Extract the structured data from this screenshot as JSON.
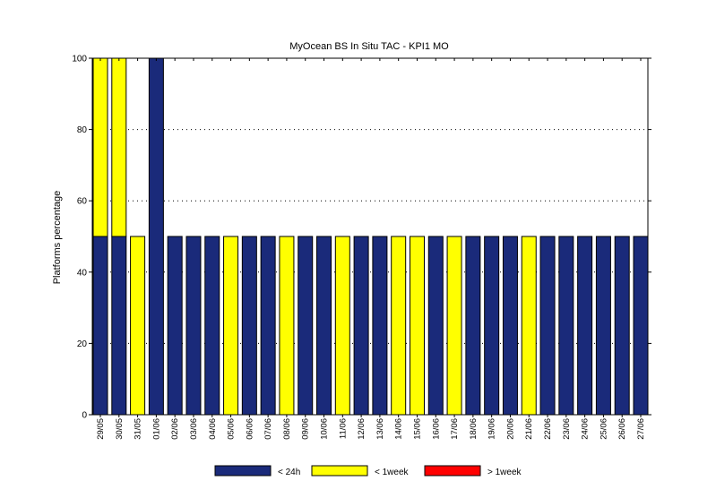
{
  "chart_data": {
    "type": "bar",
    "stacked": true,
    "title": "MyOcean  BS In Situ TAC - KPI1  MO",
    "ylabel": "Platforms percentage",
    "xlabel": "",
    "ylim": [
      0,
      100
    ],
    "yticks": [
      0,
      20,
      40,
      60,
      80,
      100
    ],
    "grid": "dotted horizontal",
    "legend_position": "bottom",
    "categories": [
      "29/05",
      "30/05",
      "31/05",
      "01/06",
      "02/06",
      "03/06",
      "04/06",
      "05/06",
      "06/06",
      "07/06",
      "08/06",
      "09/06",
      "10/06",
      "11/06",
      "12/06",
      "13/06",
      "14/06",
      "15/06",
      "16/06",
      "17/06",
      "18/06",
      "19/06",
      "20/06",
      "21/06",
      "22/06",
      "23/06",
      "24/06",
      "25/06",
      "26/06",
      "27/06"
    ],
    "series": [
      {
        "name": "< 24h",
        "color": "#1a2a7a",
        "values": [
          50,
          50,
          0,
          100,
          50,
          50,
          50,
          0,
          50,
          50,
          0,
          50,
          50,
          0,
          50,
          50,
          0,
          0,
          50,
          0,
          50,
          50,
          50,
          0,
          50,
          50,
          50,
          50,
          50,
          50
        ]
      },
      {
        "name": "< 1week",
        "color": "#ffff00",
        "values": [
          50,
          50,
          50,
          0,
          0,
          0,
          0,
          50,
          0,
          0,
          50,
          0,
          0,
          50,
          0,
          0,
          50,
          50,
          0,
          50,
          0,
          0,
          0,
          50,
          0,
          0,
          0,
          0,
          0,
          0
        ]
      },
      {
        "name": "> 1week",
        "color": "#ff0000",
        "values": [
          0,
          0,
          0,
          0,
          0,
          0,
          0,
          0,
          0,
          0,
          0,
          0,
          0,
          0,
          0,
          0,
          0,
          0,
          0,
          0,
          0,
          0,
          0,
          0,
          0,
          0,
          0,
          0,
          0,
          0
        ]
      }
    ]
  }
}
